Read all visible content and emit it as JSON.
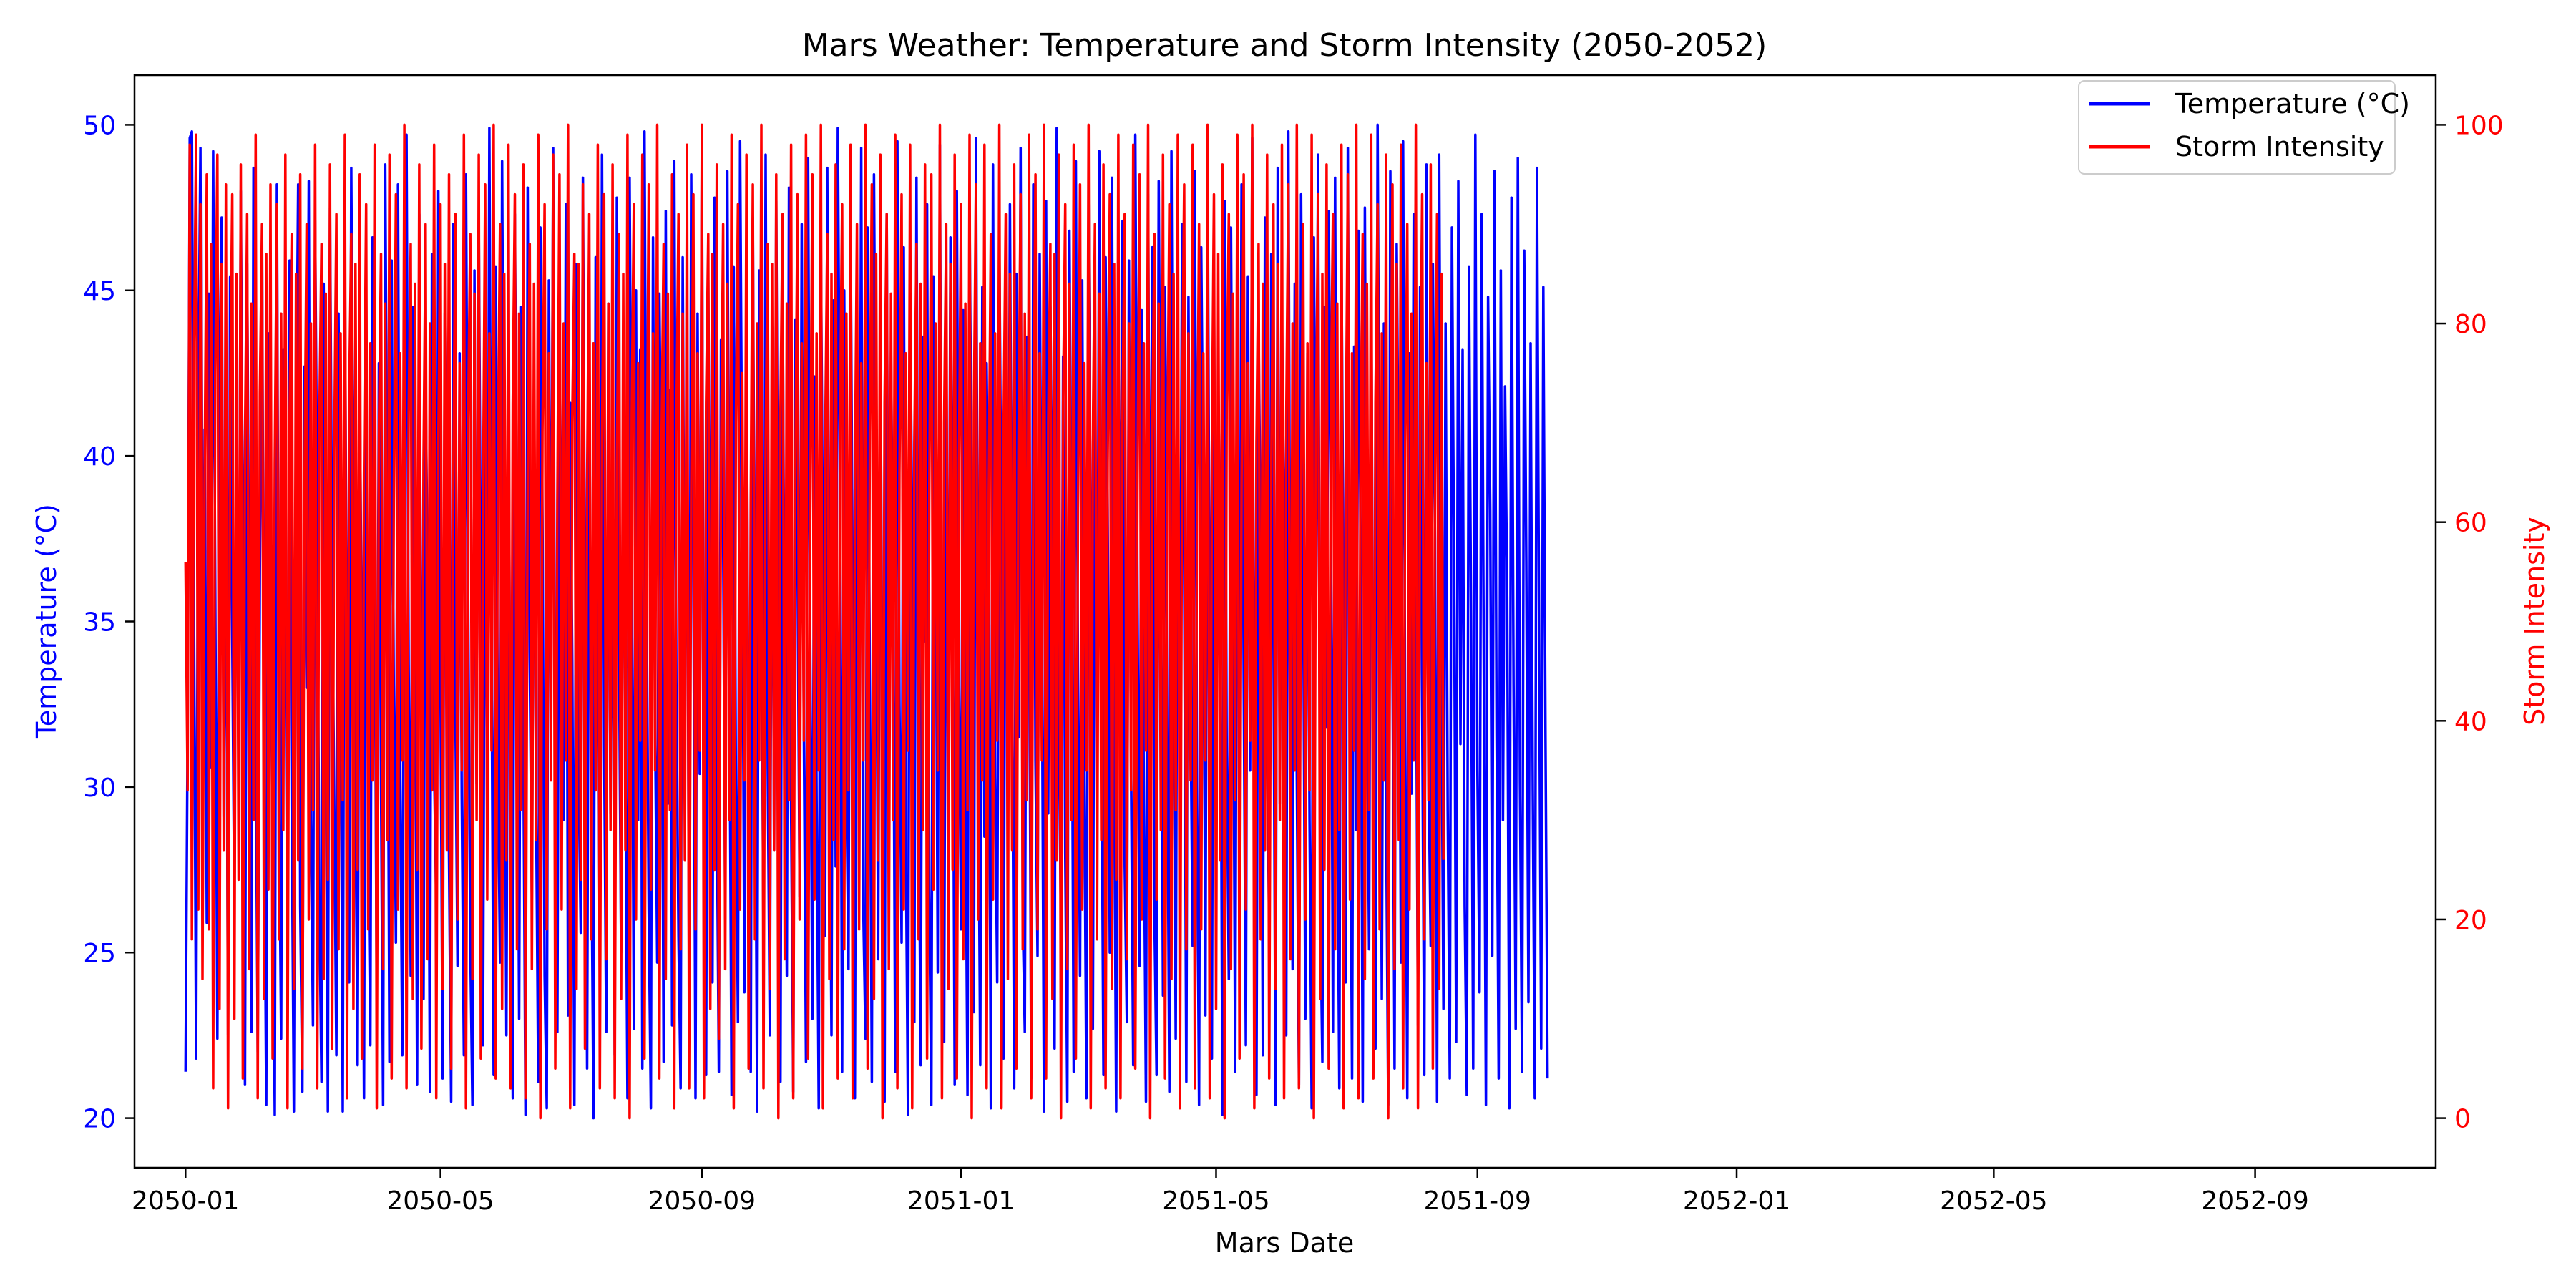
{
  "chart_data": {
    "type": "line",
    "title": "Mars Weather: Temperature and Storm Intensity (2050-2052)",
    "xlabel": "Mars Date",
    "ylabel_left": "Temperature (°C)",
    "ylabel_right": "Storm Intensity",
    "x_range": [
      "2049-12-08",
      "2052-11-25"
    ],
    "x_ticks": [
      "2050-01",
      "2050-05",
      "2050-09",
      "2051-01",
      "2051-05",
      "2051-09",
      "2052-01",
      "2052-05",
      "2052-09"
    ],
    "ylim_left": [
      18.5,
      51.5
    ],
    "yticks_left": [
      20,
      25,
      30,
      35,
      40,
      45,
      50
    ],
    "ylim_right": [
      -5,
      105
    ],
    "yticks_right": [
      0,
      20,
      40,
      60,
      80,
      100
    ],
    "grid": false,
    "legend_position": "upper right",
    "colors": {
      "left_axis": "#0000ff",
      "right_axis": "#ff0000"
    },
    "series": [
      {
        "name": "Temperature (°C)",
        "axis": "left",
        "color": "#0000ff",
        "start_date": "2050-01-01",
        "values": [
          21.4,
          31.7,
          49.6,
          49.8,
          35.3,
          21.8,
          41.6,
          49.3,
          26.7,
          40.8,
          25.9,
          44.9,
          30.6,
          49.2,
          36.0,
          22.4,
          42.6,
          47.2,
          29.1,
          39.4,
          22.5,
          45.4,
          34.5,
          26.2,
          42.2,
          30.1,
          48.0,
          37.3,
          21.0,
          45.8,
          34.6,
          22.6,
          48.7,
          31.7,
          22.0,
          36.5,
          46.5,
          30.3,
          20.4,
          43.7,
          35.2,
          28.3,
          20.1,
          48.2,
          29.9,
          22.4,
          43.2,
          36.1,
          24.5,
          45.9,
          29.4,
          20.2,
          40.1,
          48.2,
          26.4,
          20.8,
          42.7,
          33.0,
          48.3,
          29.0,
          22.8,
          47.1,
          38.0,
          26.5,
          21.1,
          45.2,
          33.1,
          20.2,
          47.5,
          36.4,
          29.6,
          21.9,
          44.3,
          35.2,
          20.2,
          46.2,
          30.7,
          24.1,
          48.7,
          37.4,
          29.5,
          21.6,
          42.5,
          33.5,
          20.6,
          45.0,
          28.8,
          22.2,
          46.6,
          36.9,
          23.5,
          42.8,
          30.1,
          20.4,
          48.8,
          36.7,
          21.7,
          45.9,
          33.1,
          25.3,
          48.2,
          30.4,
          21.9,
          41.0,
          49.7,
          33.7,
          24.3,
          44.5,
          37.2,
          21.0,
          47.3,
          29.5,
          23.6,
          42.3,
          35.8,
          20.8,
          46.1,
          30.6,
          26.4,
          48.0,
          33.0,
          21.2,
          44.3,
          37.4,
          27.9,
          20.5,
          47.0,
          32.3,
          24.6,
          43.1,
          29.7,
          21.9,
          48.5,
          35.9,
          25.3,
          20.4,
          45.6,
          30.1,
          47.1,
          36.0,
          22.2,
          42.6,
          28.7,
          49.9,
          34.2,
          21.3,
          45.7,
          30.8,
          24.7,
          48.9,
          35.1,
          22.5,
          41.9,
          29.3,
          20.6,
          47.3,
          36.7,
          23.0,
          44.5,
          31.2,
          20.1,
          48.1,
          33.9,
          26.6,
          42.5,
          29.4,
          21.1,
          46.9,
          38.2,
          24.3,
          20.3,
          45.3,
          32.0,
          49.3,
          27.6,
          22.6,
          43.8,
          36.5,
          29.0,
          47.6,
          23.1,
          41.6,
          33.8,
          20.4,
          45.8,
          30.5,
          25.6,
          48.4,
          35.3,
          21.5,
          43.9,
          28.7,
          20.0,
          46.0,
          37.7,
          24.2,
          49.1,
          31.3,
          22.6,
          44.6,
          29.2,
          40.5,
          21.9,
          47.8,
          34.1,
          25.0,
          42.3,
          30.6,
          20.6,
          48.4,
          36.2,
          22.7,
          45.0,
          29.0,
          43.2,
          21.5,
          49.8,
          35.5,
          26.3,
          20.3,
          46.6,
          31.9,
          24.7,
          44.9,
          38.1,
          21.7,
          47.4,
          29.5,
          42.0,
          22.8,
          48.9,
          33.2,
          25.5,
          20.9,
          46.0,
          31.5,
          42.9,
          23.6,
          48.5,
          36.8,
          20.6,
          44.3,
          30.4,
          49.4,
          27.4,
          21.3,
          45.3,
          35.7,
          24.1,
          47.8,
          29.6,
          21.4,
          43.5,
          37.6,
          26.0,
          48.6,
          32.7,
          20.7,
          45.7,
          30.1,
          22.9,
          49.5,
          38.4,
          23.8,
          44.6,
          29.2,
          21.4,
          47.2,
          33.5,
          20.2,
          45.6,
          36.5,
          25.2,
          49.1,
          30.6,
          22.5,
          43.9,
          28.1,
          47.7,
          35.0,
          21.1,
          45.1,
          32.7,
          24.3,
          48.1,
          29.4,
          20.8,
          44.1,
          37.0,
          26.7,
          47.0,
          31.6,
          21.7,
          49.0,
          34.3,
          23.0,
          42.4,
          29.6,
          20.3,
          46.4,
          36.8,
          25.5,
          48.7,
          32.0,
          22.5,
          44.7,
          27.6,
          49.9,
          38.9,
          21.4,
          45.0,
          30.3,
          24.5,
          47.0,
          35.5,
          20.6,
          43.4,
          31.1,
          49.3,
          26.3,
          22.4,
          46.9,
          33.5,
          21.1,
          48.5,
          37.4,
          24.8,
          44.7,
          30.2,
          20.5,
          47.3,
          29.1,
          43.2,
          35.8,
          21.4,
          49.5,
          32.5,
          25.3,
          46.3,
          28.4,
          20.1,
          44.9,
          37.6,
          22.9,
          48.4,
          30.7,
          21.6,
          43.6,
          34.4,
          47.6,
          26.9,
          20.4,
          45.4,
          39.2,
          24.4,
          49.4,
          31.6,
          22.3,
          43.8,
          29.0,
          46.6,
          36.0,
          21.0,
          48.0,
          33.2,
          25.7,
          44.4,
          30.6,
          20.7,
          47.3,
          38.1,
          23.2,
          49.6,
          32.2,
          21.6,
          45.1,
          28.5,
          42.8,
          35.9,
          20.3,
          48.8,
          30.3,
          24.1,
          46.4,
          37.1,
          21.8,
          44.0,
          29.6,
          47.6,
          33.8,
          20.9,
          45.5,
          31.5,
          49.3,
          26.1,
          22.6,
          43.6,
          36.7,
          21.2,
          48.2,
          30.8,
          24.9,
          46.1,
          34.7,
          20.2,
          47.7,
          29.2,
          44.5,
          37.7,
          22.1,
          49.9,
          31.9,
          25.8,
          43.0,
          28.0,
          20.5,
          46.8,
          35.6,
          21.4,
          48.9,
          33.3,
          24.3,
          45.3,
          30.1,
          20.6,
          47.6,
          36.9,
          22.7,
          44.2,
          29.1,
          49.2,
          32.8,
          21.3,
          46.0,
          38.4,
          25.0,
          48.4,
          31.1,
          20.2,
          43.5,
          35.2,
          47.1,
          27.6,
          22.9,
          45.9,
          30.4,
          21.6,
          49.7,
          36.1,
          24.6,
          44.4,
          29.5,
          20.5,
          47.9,
          33.0,
          46.3,
          26.0,
          21.3,
          48.3,
          37.2,
          23.7,
          45.1,
          31.7,
          20.8,
          49.2,
          34.8,
          22.4,
          43.7,
          29.8,
          47.0,
          36.5,
          21.1,
          44.8,
          32.2,
          25.2,
          48.6,
          30.0,
          20.4,
          46.3,
          38.8,
          23.1,
          49.5,
          33.6,
          21.8,
          45.6,
          28.4,
          42.4,
          36.0,
          20.1,
          47.7,
          31.1,
          24.2,
          46.9,
          35.3,
          21.4,
          44.2,
          29.7,
          48.2,
          33.2,
          22.2,
          45.4,
          30.5,
          49.6,
          27.3,
          20.7,
          43.8,
          37.2,
          21.9,
          47.2,
          31.4,
          25.6,
          46.1,
          34.6,
          20.4,
          48.7,
          29.5,
          44.3,
          38.0,
          22.5,
          49.8,
          32.6,
          24.5,
          45.2,
          30.4,
          21.0,
          47.9,
          36.3,
          23.0,
          43.1,
          29.0,
          20.3,
          46.6,
          35.0,
          49.1,
          26.7,
          21.7,
          44.5,
          31.8,
          47.4,
          38.6,
          22.6,
          48.4,
          30.1,
          20.9,
          45.9,
          35.4,
          24.1,
          49.3,
          32.0,
          21.2,
          43.3,
          28.7,
          46.8,
          37.4,
          20.5,
          47.5,
          33.5,
          25.1,
          45.5,
          30.3,
          22.1,
          50.0,
          36.8,
          23.6,
          44.0,
          29.2,
          20.4,
          48.6,
          34.2,
          21.5,
          46.4,
          38.2,
          24.7,
          49.5,
          31.6,
          20.6,
          43.1,
          29.8,
          47.3,
          35.9,
          22.8,
          45.1,
          32.4,
          21.3,
          48.8,
          30.6,
          25.2,
          45.8,
          37.5,
          20.5,
          49.1,
          33.8,
          23.3,
          44.0,
          29.3,
          21.2,
          46.9,
          36.5,
          22.3,
          48.3,
          31.3,
          43.2,
          26.4,
          20.7,
          45.7,
          35.1,
          21.5,
          49.7,
          30.5,
          23.8,
          47.3,
          33.2,
          20.4,
          44.8,
          38.4,
          24.9,
          48.6,
          31.6,
          21.2,
          45.6,
          29.0,
          42.1,
          35.7,
          20.3,
          47.8,
          33.1,
          22.7,
          49.0,
          30.2,
          21.4,
          46.2,
          36.8,
          23.5,
          43.4,
          29.9,
          20.6,
          48.7,
          34.5,
          22.1,
          45.1,
          31.6,
          21.2
        ]
      },
      {
        "name": "Storm Intensity",
        "axis": "right",
        "color": "#ff0000",
        "start_date": "2050-01-01",
        "values": [
          56,
          33,
          98,
          18,
          77,
          99,
          21,
          92,
          14,
          64,
          95,
          19,
          88,
          3,
          75,
          97,
          11,
          86,
          27,
          94,
          1,
          72,
          93,
          10,
          85,
          24,
          96,
          4,
          68,
          91,
          15,
          82,
          30,
          99,
          2,
          73,
          90,
          12,
          87,
          23,
          94,
          6,
          66,
          92,
          18,
          81,
          29,
          97,
          1,
          71,
          89,
          13,
          85,
          26,
          95,
          5,
          64,
          90,
          20,
          80,
          31,
          98,
          3,
          70,
          88,
          14,
          83,
          24,
          96,
          7,
          67,
          91,
          17,
          79,
          32,
          99,
          2,
          72,
          89,
          11,
          86,
          25,
          95,
          6,
          65,
          92,
          19,
          78,
          34,
          98,
          1,
          69,
          87,
          15,
          82,
          28,
          97,
          4,
          62,
          93,
          21,
          77,
          36,
          100,
          3,
          71,
          88,
          12,
          84,
          25,
          96,
          7,
          66,
          90,
          16,
          80,
          33,
          98,
          2,
          68,
          92,
          13,
          86,
          27,
          95,
          5,
          63,
          91,
          20,
          76,
          35,
          99,
          1,
          70,
          89,
          14,
          83,
          30,
          97,
          6,
          61,
          94,
          22,
          79,
          37,
          100,
          4,
          67,
          90,
          11,
          85,
          26,
          98,
          3,
          72,
          93,
          17,
          81,
          31,
          96,
          2,
          65,
          88,
          15,
          84,
          28,
          99,
          0,
          69,
          92,
          19,
          77,
          34,
          97,
          5,
          62,
          95,
          21,
          80,
          36,
          100,
          1,
          70,
          87,
          13,
          86,
          24,
          94,
          7,
          64,
          91,
          18,
          78,
          33,
          98,
          3,
          68,
          93,
          16,
          82,
          29,
          96,
          2,
          66,
          89,
          12,
          85,
          27,
          99,
          0,
          71,
          92,
          20,
          76,
          38,
          97,
          6,
          60,
          94,
          23,
          79,
          35,
          100,
          4,
          67,
          88,
          14,
          83,
          31,
          95,
          1,
          69,
          91,
          17,
          81,
          26,
          98,
          3,
          63,
          93,
          19,
          77,
          37,
          100,
          2,
          72,
          89,
          11,
          87,
          25,
          96,
          8,
          65,
          90,
          15,
          84,
          30,
          99,
          1,
          70,
          92,
          21,
          75,
          34,
          97,
          5,
          62,
          94,
          18,
          80,
          36,
          100,
          3,
          68,
          88,
          13,
          86,
          27,
          95,
          0,
          71,
          91,
          16,
          82,
          32,
          98,
          2,
          64,
          93,
          20,
          78,
          38,
          99,
          6,
          61,
          95,
          22,
          79,
          35,
          100,
          1,
          67,
          89,
          14,
          85,
          28,
          96,
          4,
          70,
          92,
          17,
          81,
          33,
          98,
          2,
          63,
          90,
          19,
          76,
          36,
          100,
          5,
          69,
          94,
          12,
          87,
          26,
          97,
          0,
          72,
          91,
          15,
          83,
          30,
          99,
          3,
          65,
          93,
          21,
          77,
          37,
          98,
          1,
          68,
          88,
          18,
          84,
          29,
          96,
          6,
          62,
          95,
          23,
          80,
          35,
          100,
          2,
          70,
          90,
          13,
          86,
          25,
          97,
          4,
          66,
          92,
          16,
          82,
          31,
          99,
          0,
          71,
          94,
          20,
          78,
          34,
          98,
          3,
          63,
          89,
          22,
          79,
          38,
          100,
          1,
          69,
          91,
          14,
          85,
          27,
          96,
          5,
          67,
          93,
          17,
          81,
          32,
          99,
          2,
          64,
          95,
          19,
          77,
          36,
          100,
          4,
          70,
          88,
          12,
          87,
          26,
          97,
          0,
          72,
          92,
          15,
          84,
          30,
          98,
          6,
          61,
          94,
          21,
          76,
          35,
          100,
          1,
          68,
          90,
          18,
          83,
          28,
          96,
          3,
          66,
          93,
          13,
          86,
          24,
          99,
          2,
          71,
          91,
          16,
          80,
          33,
          98,
          5,
          63,
          95,
          20,
          78,
          37,
          100,
          0,
          69,
          89,
          22,
          82,
          29,
          97,
          4,
          65,
          92,
          14,
          85,
          31,
          99,
          1,
          70,
          94,
          17,
          79,
          34,
          98,
          3,
          62,
          90,
          19,
          77,
          36,
          100,
          2,
          67,
          93,
          11,
          87,
          26,
          96,
          0,
          72,
          91,
          15,
          83,
          32,
          99,
          6,
          64,
          95,
          21,
          76,
          38,
          100,
          1,
          68,
          88,
          18,
          84,
          27,
          97,
          4,
          66,
          92,
          13,
          86,
          30,
          98,
          2,
          70,
          94,
          16,
          80,
          35,
          100,
          3,
          63,
          90,
          20,
          78,
          33,
          99,
          0,
          69,
          93,
          12,
          85,
          25,
          96,
          5,
          71,
          91,
          17,
          82,
          29,
          98,
          1,
          65,
          95,
          22,
          77,
          37,
          100,
          2,
          67,
          89,
          14,
          84,
          31,
          99,
          4,
          72,
          92,
          19,
          79,
          34,
          97,
          0,
          62,
          94,
          15,
          86,
          28,
          98,
          3,
          68,
          90,
          21,
          81,
          36,
          100,
          1,
          70,
          93,
          18,
          76,
          32,
          96,
          5,
          64,
          91,
          13,
          85,
          26
        ]
      }
    ]
  }
}
